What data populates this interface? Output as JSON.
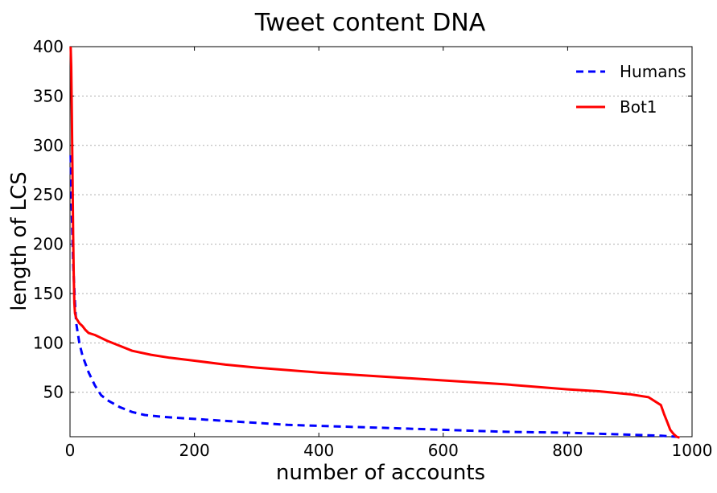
{
  "chart_data": {
    "type": "line",
    "title": "Tweet content DNA",
    "xlabel": "number of accounts",
    "ylabel": "length of LCS",
    "xlim": [
      0,
      1000
    ],
    "ylim": [
      5,
      400
    ],
    "x_ticks": [
      0,
      200,
      400,
      600,
      800,
      1000
    ],
    "y_ticks": [
      50,
      100,
      150,
      200,
      250,
      300,
      350,
      400
    ],
    "grid": "horizontal dotted",
    "legend_position": "top-right",
    "series": [
      {
        "name": "Humans",
        "color": "#0000ff",
        "style": "dashed",
        "x": [
          1,
          3,
          5,
          8,
          10,
          15,
          20,
          30,
          40,
          50,
          60,
          80,
          100,
          120,
          150,
          200,
          250,
          300,
          350,
          400,
          500,
          600,
          700,
          800,
          900,
          950,
          975
        ],
        "y": [
          290,
          230,
          180,
          140,
          120,
          100,
          87,
          70,
          57,
          47,
          42,
          35,
          30,
          27,
          25,
          23,
          21,
          19,
          17,
          16,
          14,
          12,
          10,
          9,
          7,
          6,
          5
        ]
      },
      {
        "name": "Bot1",
        "color": "#ff0000",
        "style": "solid",
        "x": [
          1,
          2,
          3,
          4,
          5,
          6,
          7,
          8,
          10,
          15,
          20,
          25,
          30,
          40,
          50,
          60,
          80,
          100,
          130,
          160,
          200,
          250,
          300,
          400,
          500,
          600,
          700,
          800,
          850,
          900,
          930,
          950,
          955,
          960,
          965,
          970,
          975,
          980
        ],
        "y": [
          400,
          380,
          330,
          270,
          210,
          170,
          140,
          130,
          125,
          120,
          117,
          113,
          110,
          108,
          105,
          102,
          97,
          92,
          88,
          85,
          82,
          78,
          75,
          70,
          66,
          62,
          58,
          53,
          51,
          48,
          45,
          37,
          28,
          20,
          12,
          8,
          5,
          4
        ]
      }
    ]
  }
}
